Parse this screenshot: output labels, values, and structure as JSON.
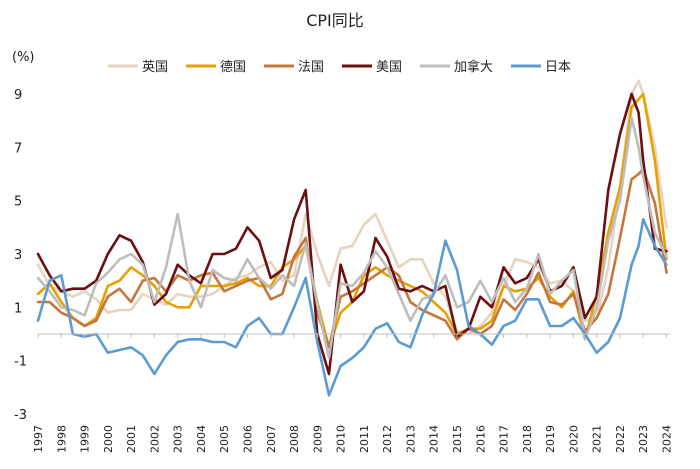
{
  "chart_data": {
    "type": "line",
    "title": "CPI同比",
    "ylabel": "(%)",
    "xlabel": "",
    "ylim": [
      -3,
      9.9
    ],
    "yticks": [
      9,
      7,
      5,
      3,
      1,
      -1,
      -3
    ],
    "xlim": [
      1997.0,
      2024.15
    ],
    "xticks": [
      "1997",
      "1998",
      "1999",
      "2000",
      "2001",
      "2002",
      "2003",
      "2004",
      "2005",
      "2006",
      "2007",
      "2008",
      "2009",
      "2010",
      "2011",
      "2012",
      "2013",
      "2014",
      "2015",
      "2016",
      "2017",
      "2018",
      "2019",
      "2020",
      "2021",
      "2022",
      "2023",
      "2024"
    ],
    "grid": false,
    "legend_position": "top-center",
    "series": [
      {
        "name": "英国",
        "color": "#e8d3bf",
        "x": [
          1997.0,
          1997.5,
          1998.0,
          1998.5,
          1999.0,
          1999.5,
          2000.0,
          2000.5,
          2001.0,
          2001.5,
          2002.0,
          2002.5,
          2003.0,
          2003.5,
          2004.0,
          2004.5,
          2005.0,
          2005.5,
          2006.0,
          2006.5,
          2007.0,
          2007.5,
          2008.0,
          2008.5,
          2009.0,
          2009.5,
          2010.0,
          2010.5,
          2011.0,
          2011.5,
          2012.0,
          2012.5,
          2013.0,
          2013.5,
          2014.0,
          2014.5,
          2015.0,
          2015.5,
          2016.0,
          2016.5,
          2017.0,
          2017.5,
          2018.0,
          2018.5,
          2019.0,
          2019.5,
          2020.0,
          2020.5,
          2021.0,
          2021.5,
          2022.0,
          2022.5,
          2022.8,
          2023.0,
          2023.5,
          2024.0
        ],
        "values": [
          2.6,
          1.8,
          1.6,
          1.4,
          1.6,
          1.3,
          0.8,
          0.9,
          0.9,
          1.5,
          1.3,
          1.1,
          1.5,
          1.4,
          1.4,
          1.5,
          1.8,
          2.1,
          2.2,
          2.5,
          2.7,
          2.0,
          2.2,
          4.5,
          3.0,
          1.8,
          3.2,
          3.3,
          4.1,
          4.5,
          3.5,
          2.5,
          2.8,
          2.8,
          1.9,
          1.4,
          0.1,
          0.0,
          0.3,
          0.8,
          1.8,
          2.8,
          2.7,
          2.5,
          1.9,
          2.0,
          1.6,
          0.5,
          0.6,
          2.5,
          5.5,
          9.0,
          9.5,
          9.0,
          7.0,
          4.0
        ]
      },
      {
        "name": "德国",
        "color": "#e6a100",
        "x": [
          1997.0,
          1997.5,
          1998.0,
          1998.5,
          1999.0,
          1999.5,
          2000.0,
          2000.5,
          2001.0,
          2001.5,
          2002.0,
          2002.5,
          2003.0,
          2003.5,
          2004.0,
          2004.5,
          2005.0,
          2005.5,
          2006.0,
          2006.5,
          2007.0,
          2007.5,
          2008.0,
          2008.5,
          2009.0,
          2009.5,
          2010.0,
          2010.5,
          2011.0,
          2011.5,
          2012.0,
          2012.5,
          2013.0,
          2013.5,
          2014.0,
          2014.5,
          2015.0,
          2015.5,
          2016.0,
          2016.5,
          2017.0,
          2017.5,
          2018.0,
          2018.5,
          2019.0,
          2019.5,
          2020.0,
          2020.5,
          2021.0,
          2021.5,
          2022.0,
          2022.5,
          2022.8,
          2023.0,
          2023.5,
          2024.0
        ],
        "values": [
          1.5,
          1.9,
          1.2,
          0.6,
          0.3,
          0.6,
          1.8,
          2.0,
          2.5,
          2.2,
          1.8,
          1.2,
          1.0,
          1.0,
          1.8,
          1.8,
          1.8,
          1.9,
          2.1,
          1.8,
          1.8,
          2.5,
          2.8,
          3.3,
          1.2,
          -0.5,
          0.8,
          1.2,
          2.2,
          2.5,
          2.2,
          2.0,
          1.8,
          1.6,
          1.2,
          0.8,
          0.0,
          0.2,
          0.2,
          0.5,
          1.8,
          1.6,
          1.7,
          2.1,
          1.4,
          1.0,
          1.6,
          -0.2,
          1.5,
          3.8,
          5.5,
          8.5,
          8.8,
          9.0,
          6.5,
          2.8
        ]
      },
      {
        "name": "法国",
        "color": "#c6763d",
        "x": [
          1997.0,
          1997.5,
          1998.0,
          1998.5,
          1999.0,
          1999.5,
          2000.0,
          2000.5,
          2001.0,
          2001.5,
          2002.0,
          2002.5,
          2003.0,
          2003.5,
          2004.0,
          2004.5,
          2005.0,
          2005.5,
          2006.0,
          2006.5,
          2007.0,
          2007.5,
          2008.0,
          2008.5,
          2009.0,
          2009.5,
          2010.0,
          2010.5,
          2011.0,
          2011.5,
          2012.0,
          2012.5,
          2013.0,
          2013.5,
          2014.0,
          2014.5,
          2015.0,
          2015.5,
          2016.0,
          2016.5,
          2017.0,
          2017.5,
          2018.0,
          2018.5,
          2019.0,
          2019.5,
          2020.0,
          2020.5,
          2021.0,
          2021.5,
          2022.0,
          2022.5,
          2022.8,
          2023.0,
          2023.5,
          2024.0
        ],
        "values": [
          1.2,
          1.2,
          0.8,
          0.6,
          0.3,
          0.5,
          1.4,
          1.7,
          1.2,
          2.0,
          2.1,
          1.6,
          2.2,
          2.0,
          2.2,
          2.3,
          1.6,
          1.8,
          2.0,
          2.1,
          1.3,
          1.5,
          2.9,
          3.6,
          0.8,
          -0.5,
          1.4,
          1.6,
          1.9,
          2.2,
          2.5,
          2.2,
          1.2,
          0.9,
          0.7,
          0.5,
          -0.2,
          0.2,
          0.0,
          0.3,
          1.3,
          0.9,
          1.5,
          2.3,
          1.2,
          1.1,
          1.5,
          0.1,
          0.6,
          1.5,
          3.6,
          5.8,
          6.0,
          6.2,
          4.9,
          2.3
        ]
      },
      {
        "name": "美国",
        "color": "#6b0f0f",
        "x": [
          1997.0,
          1997.5,
          1998.0,
          1998.5,
          1999.0,
          1999.5,
          2000.0,
          2000.5,
          2001.0,
          2001.5,
          2002.0,
          2002.5,
          2003.0,
          2003.5,
          2004.0,
          2004.5,
          2005.0,
          2005.5,
          2006.0,
          2006.5,
          2007.0,
          2007.5,
          2008.0,
          2008.5,
          2009.0,
          2009.5,
          2010.0,
          2010.5,
          2011.0,
          2011.5,
          2012.0,
          2012.5,
          2013.0,
          2013.5,
          2014.0,
          2014.5,
          2015.0,
          2015.5,
          2016.0,
          2016.5,
          2017.0,
          2017.5,
          2018.0,
          2018.5,
          2019.0,
          2019.5,
          2020.0,
          2020.5,
          2021.0,
          2021.5,
          2022.0,
          2022.5,
          2022.8,
          2023.0,
          2023.5,
          2024.0
        ],
        "values": [
          3.0,
          2.2,
          1.6,
          1.7,
          1.7,
          2.0,
          3.0,
          3.7,
          3.5,
          2.7,
          1.1,
          1.5,
          2.6,
          2.2,
          1.9,
          3.0,
          3.0,
          3.2,
          4.0,
          3.5,
          2.1,
          2.4,
          4.3,
          5.4,
          0.0,
          -1.5,
          2.6,
          1.2,
          1.6,
          3.6,
          2.9,
          1.7,
          1.6,
          1.8,
          1.6,
          1.8,
          -0.1,
          0.2,
          1.4,
          1.0,
          2.5,
          1.9,
          2.1,
          2.8,
          1.6,
          1.8,
          2.5,
          0.6,
          1.4,
          5.4,
          7.5,
          9.0,
          8.3,
          6.5,
          3.2,
          3.1
        ]
      },
      {
        "name": "加拿大",
        "color": "#bdbdbd",
        "x": [
          1997.0,
          1997.5,
          1998.0,
          1998.5,
          1999.0,
          1999.5,
          2000.0,
          2000.5,
          2001.0,
          2001.5,
          2002.0,
          2002.5,
          2003.0,
          2003.5,
          2004.0,
          2004.5,
          2005.0,
          2005.5,
          2006.0,
          2006.5,
          2007.0,
          2007.5,
          2008.0,
          2008.5,
          2009.0,
          2009.5,
          2010.0,
          2010.5,
          2011.0,
          2011.5,
          2012.0,
          2012.5,
          2013.0,
          2013.5,
          2014.0,
          2014.5,
          2015.0,
          2015.5,
          2016.0,
          2016.5,
          2017.0,
          2017.5,
          2018.0,
          2018.5,
          2019.0,
          2019.5,
          2020.0,
          2020.5,
          2021.0,
          2021.5,
          2022.0,
          2022.5,
          2022.8,
          2023.0,
          2023.5,
          2024.0
        ],
        "values": [
          2.1,
          1.6,
          1.0,
          0.9,
          0.7,
          1.9,
          2.3,
          2.8,
          3.0,
          2.6,
          1.2,
          2.5,
          4.5,
          2.0,
          1.0,
          2.4,
          2.1,
          2.0,
          2.8,
          2.1,
          1.7,
          2.2,
          1.8,
          3.4,
          1.1,
          -0.9,
          1.9,
          1.8,
          2.3,
          3.1,
          2.5,
          1.5,
          0.5,
          1.3,
          1.5,
          2.2,
          1.0,
          1.2,
          2.0,
          1.2,
          2.1,
          1.2,
          1.7,
          3.0,
          1.5,
          2.0,
          2.4,
          -0.2,
          1.0,
          3.5,
          5.0,
          8.1,
          7.0,
          5.9,
          3.8,
          2.9
        ]
      },
      {
        "name": "日本",
        "color": "#5b9bd5",
        "x": [
          1997.0,
          1997.5,
          1998.0,
          1998.5,
          1999.0,
          1999.5,
          2000.0,
          2000.5,
          2001.0,
          2001.5,
          2002.0,
          2002.5,
          2003.0,
          2003.5,
          2004.0,
          2004.5,
          2005.0,
          2005.5,
          2006.0,
          2006.5,
          2007.0,
          2007.5,
          2008.0,
          2008.5,
          2009.0,
          2009.5,
          2010.0,
          2010.5,
          2011.0,
          2011.5,
          2012.0,
          2012.5,
          2013.0,
          2013.5,
          2014.0,
          2014.5,
          2015.0,
          2015.5,
          2016.0,
          2016.5,
          2017.0,
          2017.5,
          2018.0,
          2018.5,
          2019.0,
          2019.5,
          2020.0,
          2020.5,
          2021.0,
          2021.5,
          2022.0,
          2022.5,
          2022.8,
          2023.0,
          2023.5,
          2024.0
        ],
        "values": [
          0.5,
          2.0,
          2.2,
          0.0,
          -0.1,
          0.0,
          -0.7,
          -0.6,
          -0.5,
          -0.8,
          -1.5,
          -0.8,
          -0.3,
          -0.2,
          -0.2,
          -0.3,
          -0.3,
          -0.5,
          0.3,
          0.6,
          0.0,
          0.0,
          1.0,
          2.1,
          -0.3,
          -2.3,
          -1.2,
          -0.9,
          -0.5,
          0.2,
          0.4,
          -0.3,
          -0.5,
          0.7,
          1.5,
          3.5,
          2.4,
          0.3,
          0.0,
          -0.4,
          0.3,
          0.5,
          1.3,
          1.3,
          0.3,
          0.3,
          0.6,
          0.0,
          -0.7,
          -0.3,
          0.6,
          2.6,
          3.3,
          4.3,
          3.3,
          2.6
        ]
      }
    ]
  }
}
